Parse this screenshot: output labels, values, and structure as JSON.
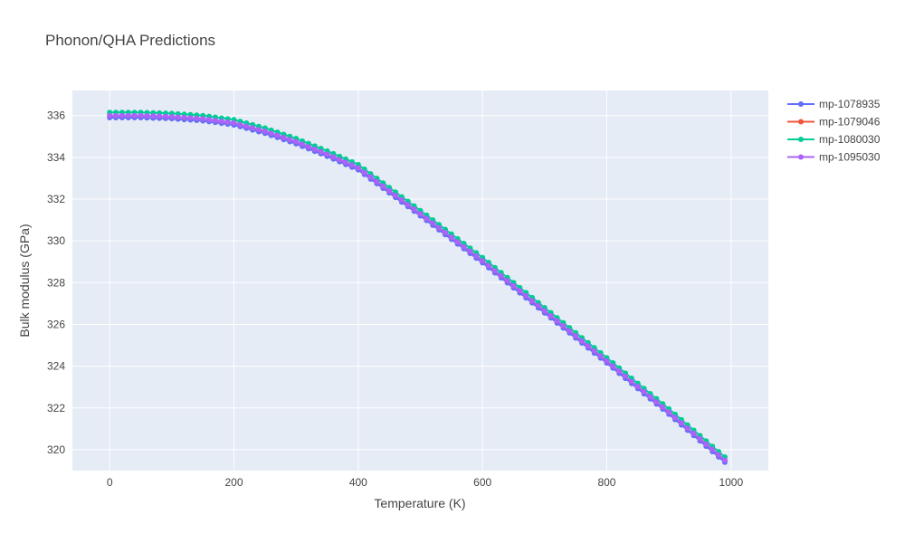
{
  "chart_data": {
    "type": "line",
    "title": "Phonon/QHA Predictions",
    "xlabel": "Temperature (K)",
    "ylabel": "Bulk modulus (GPa)",
    "xlim": [
      -60,
      1060
    ],
    "ylim": [
      319.0,
      337.2
    ],
    "xticks": [
      0,
      200,
      400,
      600,
      800,
      1000
    ],
    "yticks": [
      320,
      322,
      324,
      326,
      328,
      330,
      332,
      334,
      336
    ],
    "grid": true,
    "legend_position": "top-right",
    "x_start": 0,
    "x_step": 10,
    "x_count": 100,
    "model": {
      "profile_T": [
        0,
        50,
        100,
        150,
        200,
        250,
        300,
        350,
        400,
        500,
        600,
        700,
        800,
        900,
        990
      ],
      "profile_drop": [
        0.0,
        0.0,
        0.05,
        0.15,
        0.35,
        0.75,
        1.25,
        1.85,
        2.5,
        4.7,
        6.95,
        9.35,
        11.75,
        14.2,
        16.5
      ]
    },
    "series": [
      {
        "name": "mp-1078935",
        "color": "#636efa",
        "y0": 335.9
      },
      {
        "name": "mp-1079046",
        "color": "#ef553b",
        "y0": 336.0
      },
      {
        "name": "mp-1080030",
        "color": "#00cc96",
        "y0": 336.15
      },
      {
        "name": "mp-1095030",
        "color": "#ab63fa",
        "y0": 336.0
      }
    ]
  }
}
